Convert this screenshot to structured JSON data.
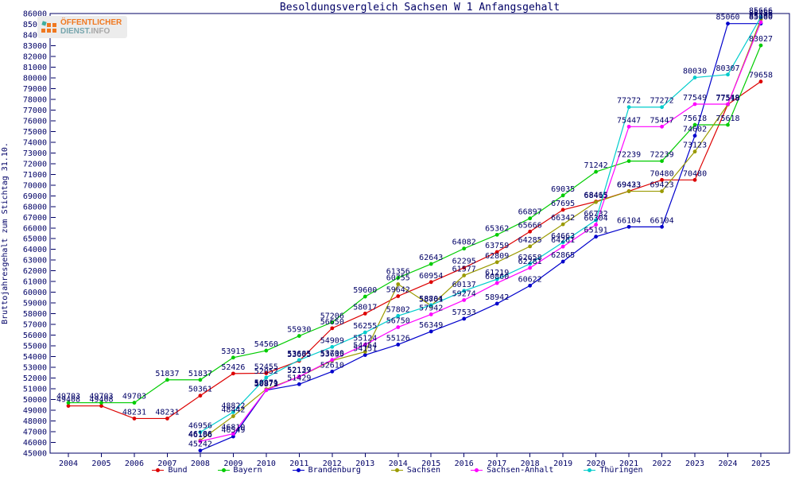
{
  "title": "Besoldungsvergleich Sachsen W 1 Anfangsgehalt",
  "logo": {
    "line1": "ÖFFENTLICHER",
    "line2_a": "DIENST.",
    "line2_b": "INFO",
    "orange": "#f07820",
    "teal": "#3fae9f"
  },
  "y_axis": {
    "label": "Bruttojahresgehalt zum Stichtag 31.10.",
    "min": 45000,
    "max": 86000,
    "step": 1000
  },
  "x_axis": {
    "years": [
      2004,
      2005,
      2006,
      2007,
      2008,
      2009,
      2010,
      2011,
      2012,
      2013,
      2014,
      2015,
      2016,
      2017,
      2018,
      2019,
      2020,
      2021,
      2022,
      2023,
      2024,
      2025
    ]
  },
  "chart_data": {
    "type": "line",
    "title": "Besoldungsvergleich Sachsen W 1 Anfangsgehalt",
    "ylabel": "Bruttojahresgehalt zum Stichtag 31.10.",
    "ylim": [
      45000,
      86000
    ],
    "grid": false,
    "legend_position": "bottom",
    "point_labels": true,
    "x": [
      2004,
      2005,
      2006,
      2007,
      2008,
      2009,
      2010,
      2011,
      2012,
      2013,
      2014,
      2015,
      2016,
      2017,
      2018,
      2019,
      2020,
      2021,
      2022,
      2023,
      2024,
      2025
    ],
    "series": [
      {
        "name": "Bund",
        "color": "#dd0000",
        "values": [
          49408,
          49408,
          48231,
          48231,
          50361,
          52426,
          52455,
          53605,
          56650,
          58017,
          59642,
          60954,
          62295,
          63759,
          65666,
          67695,
          68465,
          69433,
          70480,
          70480,
          77518,
          79658
        ]
      },
      {
        "name": "Bayern",
        "color": "#00cc00",
        "values": [
          49703,
          49703,
          49703,
          51837,
          51837,
          53913,
          54560,
          55930,
          57206,
          59600,
          61356,
          62643,
          64082,
          65362,
          66897,
          69035,
          71242,
          72239,
          72239,
          75618,
          75618,
          83027
        ]
      },
      {
        "name": "Brandenburg",
        "color": "#0000cc",
        "values": [
          null,
          null,
          null,
          null,
          45242,
          46549,
          50871,
          51429,
          52610,
          54151,
          55126,
          56349,
          57533,
          58942,
          60622,
          62865,
          65191,
          66104,
          66104,
          74602,
          85060,
          85060
        ]
      },
      {
        "name": "Sachsen",
        "color": "#9a9a00",
        "values": [
          null,
          null,
          null,
          null,
          46186,
          48442,
          50971,
          52127,
          53635,
          54454,
          60755,
          58761,
          61577,
          62809,
          64285,
          66342,
          68415,
          69423,
          69423,
          73123,
          77518,
          85456
        ]
      },
      {
        "name": "Sachsen-Anhalt",
        "color": "#ff00ff",
        "values": [
          null,
          null,
          null,
          null,
          46106,
          46810,
          50879,
          52139,
          53700,
          55124,
          56750,
          57942,
          59274,
          60860,
          62281,
          64261,
          66304,
          75447,
          75447,
          77549,
          77549,
          85190
        ]
      },
      {
        "name": "Thüringen",
        "color": "#00cccc",
        "values": [
          null,
          null,
          null,
          null,
          46956,
          48822,
          52052,
          53685,
          54909,
          56255,
          57802,
          58804,
          60137,
          61219,
          62658,
          64663,
          66732,
          77272,
          77272,
          80030,
          80307,
          85666
        ]
      }
    ]
  },
  "colors": {
    "axis_text": "#000066",
    "border": "#000066",
    "background": "#ffffff"
  }
}
